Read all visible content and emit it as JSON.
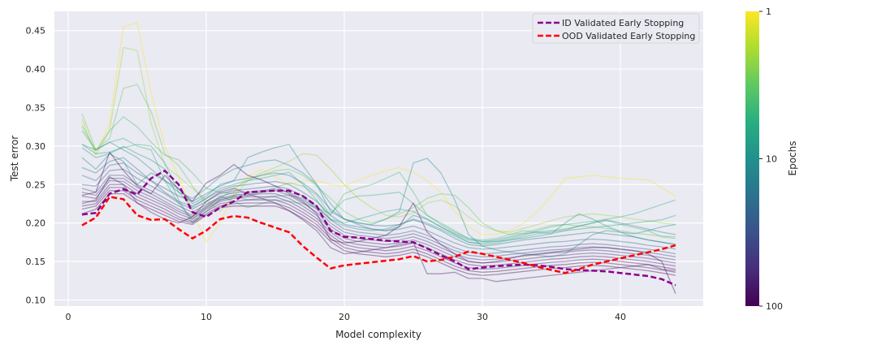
{
  "chart_data": {
    "type": "line",
    "xlabel": "Model complexity",
    "ylabel": "Test error",
    "xlim": [
      -1,
      46
    ],
    "ylim": [
      0.092,
      0.475
    ],
    "xticks": [
      0,
      10,
      20,
      30,
      40
    ],
    "yticks": [
      0.1,
      0.15,
      0.2,
      0.25,
      0.3,
      0.35,
      0.4,
      0.45
    ],
    "grid": true,
    "legend_position": "top-right",
    "x": [
      1,
      2,
      3,
      4,
      5,
      6,
      7,
      8,
      9,
      10,
      11,
      12,
      13,
      14,
      15,
      16,
      17,
      18,
      19,
      20,
      21,
      22,
      23,
      24,
      25,
      26,
      27,
      28,
      29,
      30,
      31,
      32,
      33,
      34,
      35,
      36,
      37,
      38,
      39,
      40,
      41,
      42,
      43,
      44
    ],
    "series": [
      {
        "name": "ID Validated Early Stopping",
        "color": "#8b008b",
        "style": "dashed",
        "values": [
          0.211,
          0.213,
          0.238,
          0.244,
          0.237,
          0.258,
          0.268,
          0.25,
          0.214,
          0.208,
          0.22,
          0.228,
          0.24,
          0.241,
          0.242,
          0.242,
          0.235,
          0.222,
          0.19,
          0.182,
          0.181,
          0.179,
          0.177,
          0.176,
          0.175,
          0.167,
          0.158,
          0.15,
          0.14,
          0.142,
          0.144,
          0.145,
          0.146,
          0.145,
          0.143,
          0.14,
          0.139,
          0.138,
          0.137,
          0.135,
          0.133,
          0.131,
          0.127,
          0.119
        ]
      },
      {
        "name": "OOD Validated Early Stopping",
        "color": "#ff0000",
        "style": "dashed",
        "values": [
          0.197,
          0.207,
          0.234,
          0.231,
          0.21,
          0.204,
          0.205,
          0.192,
          0.18,
          0.19,
          0.205,
          0.209,
          0.207,
          0.2,
          0.194,
          0.188,
          0.17,
          0.155,
          0.141,
          0.145,
          0.147,
          0.149,
          0.151,
          0.153,
          0.157,
          0.15,
          0.152,
          0.156,
          0.163,
          0.16,
          0.156,
          0.152,
          0.148,
          0.143,
          0.139,
          0.135,
          0.14,
          0.146,
          0.15,
          0.154,
          0.158,
          0.162,
          0.166,
          0.171
        ]
      }
    ],
    "background_curves": [
      {
        "epochs": 1,
        "values": [
          0.33,
          0.29,
          0.33,
          0.455,
          0.46,
          0.37,
          0.3,
          0.26,
          0.215,
          0.175,
          0.2,
          0.24,
          0.26,
          0.27,
          0.26,
          0.25,
          0.255,
          0.255,
          0.25,
          0.248,
          0.255,
          0.262,
          0.268,
          0.272,
          0.266,
          0.255,
          0.24,
          0.215,
          0.195,
          0.185,
          0.185,
          0.19,
          0.2,
          0.215,
          0.235,
          0.258,
          0.26,
          0.262,
          0.26,
          0.258,
          0.257,
          0.256,
          0.246,
          0.235
        ]
      },
      {
        "epochs": 2,
        "values": [
          0.335,
          0.288,
          0.32,
          0.428,
          0.424,
          0.33,
          0.275,
          0.26,
          0.245,
          0.23,
          0.215,
          0.235,
          0.255,
          0.265,
          0.272,
          0.28,
          0.29,
          0.288,
          0.27,
          0.25,
          0.232,
          0.22,
          0.21,
          0.208,
          0.213,
          0.226,
          0.23,
          0.222,
          0.208,
          0.196,
          0.19,
          0.188,
          0.193,
          0.198,
          0.203,
          0.208,
          0.21,
          0.212,
          0.21,
          0.208,
          0.205,
          0.203,
          0.2,
          0.198
        ]
      },
      {
        "epochs": 3,
        "values": [
          0.342,
          0.295,
          0.31,
          0.375,
          0.38,
          0.345,
          0.29,
          0.275,
          0.248,
          0.225,
          0.232,
          0.245,
          0.255,
          0.262,
          0.268,
          0.27,
          0.262,
          0.248,
          0.232,
          0.215,
          0.205,
          0.2,
          0.205,
          0.212,
          0.22,
          0.232,
          0.238,
          0.236,
          0.22,
          0.2,
          0.19,
          0.185,
          0.187,
          0.192,
          0.197,
          0.198,
          0.196,
          0.195,
          0.193,
          0.19,
          0.187,
          0.185,
          0.183,
          0.182
        ]
      },
      {
        "epochs": 4,
        "values": [
          0.326,
          0.294,
          0.32,
          0.338,
          0.325,
          0.305,
          0.288,
          0.282,
          0.265,
          0.245,
          0.24,
          0.238,
          0.235,
          0.24,
          0.246,
          0.252,
          0.248,
          0.236,
          0.21,
          0.238,
          0.245,
          0.25,
          0.258,
          0.266,
          0.24,
          0.21,
          0.2,
          0.19,
          0.18,
          0.178,
          0.18,
          0.185,
          0.19,
          0.188,
          0.186,
          0.19,
          0.196,
          0.2,
          0.203,
          0.198,
          0.194,
          0.19,
          0.182,
          0.18
        ]
      },
      {
        "epochs": 5,
        "values": [
          0.32,
          0.295,
          0.305,
          0.31,
          0.3,
          0.295,
          0.255,
          0.225,
          0.205,
          0.22,
          0.235,
          0.228,
          0.22,
          0.225,
          0.23,
          0.228,
          0.225,
          0.22,
          0.212,
          0.23,
          0.235,
          0.236,
          0.238,
          0.24,
          0.225,
          0.21,
          0.198,
          0.188,
          0.18,
          0.176,
          0.176,
          0.18,
          0.184,
          0.19,
          0.195,
          0.198,
          0.2,
          0.202,
          0.205,
          0.208,
          0.212,
          0.218,
          0.224,
          0.23
        ]
      },
      {
        "epochs": 6,
        "values": [
          0.302,
          0.29,
          0.292,
          0.298,
          0.302,
          0.3,
          0.278,
          0.24,
          0.22,
          0.232,
          0.245,
          0.25,
          0.255,
          0.258,
          0.262,
          0.266,
          0.25,
          0.23,
          0.205,
          0.2,
          0.205,
          0.21,
          0.215,
          0.218,
          0.215,
          0.205,
          0.195,
          0.185,
          0.175,
          0.172,
          0.174,
          0.178,
          0.182,
          0.186,
          0.188,
          0.19,
          0.192,
          0.194,
          0.196,
          0.198,
          0.2,
          0.202,
          0.204,
          0.21
        ]
      },
      {
        "epochs": 8,
        "values": [
          0.298,
          0.285,
          0.29,
          0.3,
          0.29,
          0.282,
          0.27,
          0.23,
          0.2,
          0.215,
          0.23,
          0.235,
          0.23,
          0.232,
          0.235,
          0.236,
          0.232,
          0.22,
          0.205,
          0.196,
          0.192,
          0.19,
          0.192,
          0.198,
          0.205,
          0.2,
          0.192,
          0.183,
          0.175,
          0.174,
          0.176,
          0.178,
          0.18,
          0.183,
          0.186,
          0.2,
          0.212,
          0.205,
          0.196,
          0.188,
          0.182,
          0.178,
          0.175,
          0.172
        ]
      },
      {
        "epochs": 10,
        "values": [
          0.302,
          0.295,
          0.305,
          0.295,
          0.285,
          0.27,
          0.255,
          0.245,
          0.225,
          0.235,
          0.25,
          0.255,
          0.285,
          0.292,
          0.298,
          0.302,
          0.275,
          0.25,
          0.215,
          0.205,
          0.2,
          0.198,
          0.205,
          0.215,
          0.278,
          0.284,
          0.265,
          0.23,
          0.185,
          0.17,
          0.165,
          0.162,
          0.16,
          0.158,
          0.156,
          0.16,
          0.172,
          0.185,
          0.19,
          0.188,
          0.186,
          0.19,
          0.195,
          0.198
        ]
      },
      {
        "epochs": 12,
        "values": [
          0.285,
          0.27,
          0.29,
          0.28,
          0.25,
          0.265,
          0.255,
          0.24,
          0.232,
          0.245,
          0.26,
          0.27,
          0.275,
          0.28,
          0.282,
          0.275,
          0.265,
          0.25,
          0.225,
          0.205,
          0.198,
          0.192,
          0.19,
          0.195,
          0.21,
          0.205,
          0.195,
          0.186,
          0.178,
          0.176,
          0.178,
          0.182,
          0.186,
          0.188,
          0.19,
          0.192,
          0.196,
          0.2,
          0.204,
          0.2,
          0.196,
          0.192,
          0.188,
          0.185
        ]
      },
      {
        "epochs": 15,
        "values": [
          0.272,
          0.265,
          0.28,
          0.285,
          0.27,
          0.255,
          0.245,
          0.235,
          0.228,
          0.238,
          0.248,
          0.255,
          0.258,
          0.262,
          0.265,
          0.262,
          0.252,
          0.238,
          0.218,
          0.205,
          0.2,
          0.197,
          0.196,
          0.198,
          0.204,
          0.198,
          0.19,
          0.18,
          0.172,
          0.17,
          0.172,
          0.175,
          0.178,
          0.18,
          0.182,
          0.184,
          0.186,
          0.188,
          0.186,
          0.184,
          0.182,
          0.178,
          0.175,
          0.172
        ]
      },
      {
        "epochs": 20,
        "values": [
          0.262,
          0.255,
          0.275,
          0.278,
          0.265,
          0.255,
          0.24,
          0.228,
          0.222,
          0.232,
          0.242,
          0.248,
          0.25,
          0.252,
          0.254,
          0.25,
          0.24,
          0.228,
          0.21,
          0.198,
          0.195,
          0.192,
          0.19,
          0.192,
          0.196,
          0.19,
          0.182,
          0.174,
          0.168,
          0.166,
          0.167,
          0.169,
          0.171,
          0.173,
          0.175,
          0.176,
          0.178,
          0.179,
          0.178,
          0.176,
          0.174,
          0.171,
          0.169,
          0.166
        ]
      },
      {
        "epochs": 30,
        "values": [
          0.25,
          0.248,
          0.268,
          0.27,
          0.258,
          0.248,
          0.238,
          0.226,
          0.218,
          0.228,
          0.238,
          0.242,
          0.244,
          0.246,
          0.248,
          0.244,
          0.235,
          0.222,
          0.204,
          0.192,
          0.188,
          0.186,
          0.184,
          0.186,
          0.19,
          0.184,
          0.176,
          0.168,
          0.162,
          0.16,
          0.161,
          0.163,
          0.165,
          0.167,
          0.169,
          0.17,
          0.172,
          0.173,
          0.172,
          0.17,
          0.168,
          0.166,
          0.163,
          0.16
        ]
      },
      {
        "epochs": 40,
        "values": [
          0.245,
          0.24,
          0.262,
          0.262,
          0.25,
          0.242,
          0.232,
          0.222,
          0.214,
          0.224,
          0.234,
          0.24,
          0.24,
          0.242,
          0.244,
          0.24,
          0.23,
          0.218,
          0.2,
          0.188,
          0.184,
          0.182,
          0.18,
          0.182,
          0.186,
          0.18,
          0.172,
          0.164,
          0.158,
          0.156,
          0.157,
          0.159,
          0.161,
          0.163,
          0.165,
          0.166,
          0.168,
          0.169,
          0.168,
          0.166,
          0.164,
          0.162,
          0.159,
          0.156
        ]
      },
      {
        "epochs": 50,
        "values": [
          0.24,
          0.236,
          0.258,
          0.258,
          0.246,
          0.238,
          0.228,
          0.218,
          0.21,
          0.222,
          0.232,
          0.236,
          0.238,
          0.24,
          0.242,
          0.236,
          0.226,
          0.214,
          0.196,
          0.184,
          0.18,
          0.178,
          0.176,
          0.178,
          0.182,
          0.176,
          0.168,
          0.16,
          0.154,
          0.152,
          0.153,
          0.155,
          0.157,
          0.159,
          0.161,
          0.162,
          0.164,
          0.165,
          0.164,
          0.162,
          0.16,
          0.158,
          0.155,
          0.152
        ]
      },
      {
        "epochs": 60,
        "values": [
          0.235,
          0.232,
          0.255,
          0.254,
          0.242,
          0.234,
          0.225,
          0.215,
          0.208,
          0.22,
          0.23,
          0.234,
          0.236,
          0.238,
          0.238,
          0.232,
          0.222,
          0.21,
          0.192,
          0.18,
          0.176,
          0.174,
          0.172,
          0.174,
          0.178,
          0.172,
          0.164,
          0.156,
          0.15,
          0.148,
          0.149,
          0.151,
          0.153,
          0.155,
          0.157,
          0.158,
          0.16,
          0.161,
          0.16,
          0.158,
          0.156,
          0.154,
          0.151,
          0.148
        ]
      },
      {
        "epochs": 70,
        "values": [
          0.228,
          0.228,
          0.25,
          0.25,
          0.238,
          0.23,
          0.222,
          0.212,
          0.205,
          0.218,
          0.228,
          0.232,
          0.234,
          0.234,
          0.234,
          0.228,
          0.218,
          0.206,
          0.188,
          0.176,
          0.172,
          0.17,
          0.168,
          0.17,
          0.174,
          0.168,
          0.16,
          0.152,
          0.146,
          0.144,
          0.145,
          0.147,
          0.149,
          0.151,
          0.153,
          0.154,
          0.156,
          0.157,
          0.156,
          0.154,
          0.152,
          0.15,
          0.147,
          0.144
        ]
      },
      {
        "epochs": 80,
        "values": [
          0.222,
          0.225,
          0.246,
          0.246,
          0.234,
          0.226,
          0.218,
          0.208,
          0.202,
          0.215,
          0.225,
          0.228,
          0.23,
          0.23,
          0.23,
          0.224,
          0.214,
          0.202,
          0.184,
          0.172,
          0.168,
          0.166,
          0.164,
          0.166,
          0.17,
          0.164,
          0.156,
          0.148,
          0.142,
          0.14,
          0.141,
          0.143,
          0.145,
          0.147,
          0.149,
          0.15,
          0.152,
          0.153,
          0.152,
          0.15,
          0.148,
          0.146,
          0.143,
          0.14
        ]
      },
      {
        "epochs": 90,
        "values": [
          0.218,
          0.222,
          0.242,
          0.242,
          0.23,
          0.222,
          0.214,
          0.205,
          0.2,
          0.212,
          0.222,
          0.225,
          0.226,
          0.226,
          0.226,
          0.22,
          0.21,
          0.198,
          0.18,
          0.168,
          0.164,
          0.162,
          0.16,
          0.162,
          0.166,
          0.16,
          0.152,
          0.144,
          0.138,
          0.136,
          0.137,
          0.139,
          0.141,
          0.143,
          0.145,
          0.146,
          0.148,
          0.149,
          0.148,
          0.146,
          0.144,
          0.142,
          0.139,
          0.136
        ]
      },
      {
        "epochs": 100,
        "values": [
          0.212,
          0.218,
          0.238,
          0.238,
          0.226,
          0.218,
          0.21,
          0.202,
          0.198,
          0.21,
          0.22,
          0.222,
          0.222,
          0.222,
          0.222,
          0.216,
          0.206,
          0.194,
          0.176,
          0.164,
          0.16,
          0.158,
          0.156,
          0.158,
          0.162,
          0.156,
          0.148,
          0.14,
          0.134,
          0.132,
          0.133,
          0.135,
          0.137,
          0.139,
          0.141,
          0.142,
          0.144,
          0.145,
          0.144,
          0.142,
          0.14,
          0.138,
          0.135,
          0.132
        ]
      },
      {
        "epochs": 100,
        "values": [
          0.236,
          0.24,
          0.292,
          0.268,
          0.248,
          0.238,
          0.262,
          0.244,
          0.228,
          0.252,
          0.262,
          0.276,
          0.262,
          0.256,
          0.248,
          0.238,
          0.228,
          0.212,
          0.178,
          0.174,
          0.176,
          0.18,
          0.184,
          0.196,
          0.226,
          0.188,
          0.172,
          0.16,
          0.15,
          0.148,
          0.15,
          0.154,
          0.158,
          0.16,
          0.162,
          0.164,
          0.166,
          0.168,
          0.168,
          0.166,
          0.164,
          0.16,
          0.15,
          0.108
        ]
      },
      {
        "epochs": 80,
        "values": [
          0.225,
          0.23,
          0.26,
          0.25,
          0.226,
          0.214,
          0.205,
          0.2,
          0.208,
          0.228,
          0.24,
          0.245,
          0.238,
          0.232,
          0.226,
          0.216,
          0.204,
          0.19,
          0.168,
          0.16,
          0.162,
          0.165,
          0.168,
          0.172,
          0.175,
          0.134,
          0.134,
          0.136,
          0.128,
          0.128,
          0.124,
          0.126,
          0.128,
          0.13,
          0.132,
          0.134,
          0.136,
          0.138,
          0.14,
          0.142,
          0.144,
          0.146,
          0.14,
          0.138
        ]
      }
    ],
    "colorbar": {
      "label": "Epochs",
      "scale": "log",
      "range": [
        1,
        100
      ],
      "ticks": [
        "1",
        "10",
        "100"
      ],
      "colormap": "viridis_r"
    }
  }
}
